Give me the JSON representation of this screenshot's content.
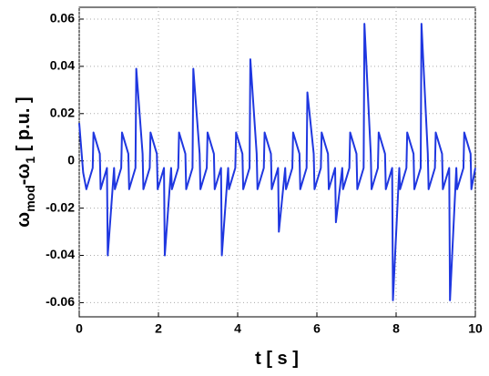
{
  "chart_data": {
    "type": "line",
    "xlabel": "t [ s ]",
    "ylabel_parts": [
      "ω",
      "mod",
      "-ω",
      "1",
      " [ p.u. ]"
    ],
    "xlim": [
      0,
      10
    ],
    "xticks": [
      0,
      2,
      4,
      6,
      8,
      10
    ],
    "ylim": [
      -0.066,
      0.065
    ],
    "yticks": [
      -0.06,
      -0.04,
      -0.02,
      0,
      0.02,
      0.04,
      0.06
    ],
    "grid": true,
    "series": [
      {
        "color": "#1f37e0",
        "x": [
          0,
          0.1,
          0.18,
          0.34,
          0.36,
          0.52,
          0.54,
          0.7,
          0.72,
          0.88,
          0.9,
          1.06,
          1.08,
          1.24,
          1.26,
          1.42,
          1.44,
          1.6,
          1.62,
          1.78,
          1.8,
          1.96,
          1.98,
          2.14,
          2.16,
          2.32,
          2.34,
          2.5,
          2.52,
          2.68,
          2.7,
          2.86,
          2.88,
          3.04,
          3.06,
          3.22,
          3.24,
          3.4,
          3.42,
          3.58,
          3.6,
          3.76,
          3.78,
          3.94,
          3.96,
          4.12,
          4.14,
          4.3,
          4.32,
          4.48,
          4.5,
          4.66,
          4.68,
          4.84,
          4.86,
          5.02,
          5.04,
          5.2,
          5.22,
          5.38,
          5.4,
          5.56,
          5.58,
          5.74,
          5.76,
          5.92,
          5.94,
          6.1,
          6.12,
          6.28,
          6.3,
          6.46,
          6.48,
          6.64,
          6.66,
          6.82,
          6.84,
          7.0,
          7.02,
          7.18,
          7.2,
          7.36,
          7.38,
          7.54,
          7.56,
          7.72,
          7.74,
          7.9,
          7.92,
          8.08,
          8.1,
          8.26,
          8.28,
          8.44,
          8.46,
          8.62,
          8.64,
          8.8,
          8.82,
          8.98,
          9.0,
          9.16,
          9.18,
          9.34,
          9.36,
          9.52,
          9.54,
          9.7,
          9.72,
          9.88,
          9.9,
          10.0
        ],
        "values": [
          0.016,
          -0.005,
          -0.012,
          -0.003,
          0.012,
          0.003,
          -0.012,
          -0.003,
          -0.04,
          -0.003,
          -0.012,
          -0.003,
          0.012,
          0.003,
          -0.012,
          -0.003,
          0.039,
          0.003,
          -0.012,
          -0.003,
          0.012,
          0.003,
          -0.012,
          -0.003,
          -0.04,
          -0.003,
          -0.012,
          -0.003,
          0.012,
          0.003,
          -0.012,
          -0.003,
          0.039,
          0.003,
          -0.012,
          -0.003,
          0.012,
          0.003,
          -0.012,
          -0.003,
          -0.04,
          -0.003,
          -0.012,
          -0.003,
          0.012,
          0.003,
          -0.012,
          -0.003,
          0.043,
          0.003,
          -0.012,
          -0.003,
          0.012,
          0.003,
          -0.012,
          -0.003,
          -0.03,
          -0.003,
          -0.012,
          -0.003,
          0.012,
          0.003,
          -0.012,
          -0.003,
          0.029,
          0.003,
          -0.012,
          -0.003,
          0.012,
          0.003,
          -0.012,
          -0.003,
          -0.026,
          -0.003,
          -0.012,
          -0.003,
          0.012,
          0.003,
          -0.012,
          -0.003,
          0.058,
          0.003,
          -0.012,
          -0.003,
          0.012,
          0.003,
          -0.012,
          -0.003,
          -0.059,
          -0.003,
          -0.012,
          -0.003,
          0.012,
          0.003,
          -0.012,
          -0.003,
          0.058,
          0.003,
          -0.012,
          -0.003,
          0.012,
          0.003,
          -0.012,
          -0.003,
          -0.059,
          -0.003,
          -0.012,
          -0.003,
          0.012,
          0.003,
          -0.012,
          -0.003
        ]
      }
    ]
  }
}
